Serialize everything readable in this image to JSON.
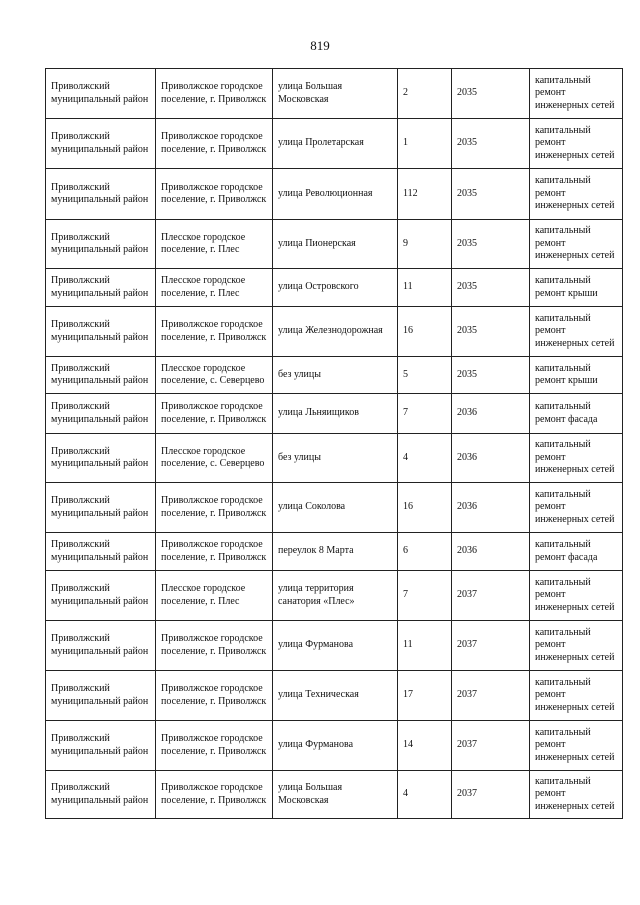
{
  "page_number": "819",
  "rows": [
    [
      "Приволжский муниципальный район",
      "Приволжское городское поселение, г. Приволжск",
      "улица Большая Московская",
      "2",
      "2035",
      "капитальный ремонт инженерных сетей"
    ],
    [
      "Приволжский муниципальный район",
      "Приволжское городское поселение, г. Приволжск",
      "улица Пролетарская",
      "1",
      "2035",
      "капитальный ремонт инженерных сетей"
    ],
    [
      "Приволжский муниципальный район",
      "Приволжское городское поселение, г. Приволжск",
      "улица Революционная",
      "112",
      "2035",
      "капитальный ремонт инженерных сетей"
    ],
    [
      "Приволжский муниципальный район",
      "Плесское городское поселение, г. Плес",
      "улица Пионерская",
      "9",
      "2035",
      "капитальный ремонт инженерных сетей"
    ],
    [
      "Приволжский муниципальный район",
      "Плесское городское поселение, г. Плес",
      "улица Островского",
      "11",
      "2035",
      "капитальный ремонт крыши"
    ],
    [
      "Приволжский муниципальный район",
      "Приволжское городское поселение, г. Приволжск",
      "улица Железнодорожная",
      "16",
      "2035",
      "капитальный ремонт инженерных сетей"
    ],
    [
      "Приволжский муниципальный район",
      "Плесское городское поселение, с. Северцево",
      "без улицы",
      "5",
      "2035",
      "капитальный ремонт крыши"
    ],
    [
      "Приволжский муниципальный район",
      "Приволжское городское поселение, г. Приволжск",
      "улица Льняищиков",
      "7",
      "2036",
      "капитальный ремонт фасада"
    ],
    [
      "Приволжский муниципальный район",
      "Плесское городское поселение, с. Северцево",
      "без улицы",
      "4",
      "2036",
      "капитальный ремонт инженерных сетей"
    ],
    [
      "Приволжский муниципальный район",
      "Приволжское городское поселение, г. Приволжск",
      "улица Соколова",
      "16",
      "2036",
      "капитальный ремонт инженерных сетей"
    ],
    [
      "Приволжский муниципальный район",
      "Приволжское городское поселение, г. Приволжск",
      "переулок 8 Марта",
      "6",
      "2036",
      "капитальный ремонт фасада"
    ],
    [
      "Приволжский муниципальный район",
      "Плесское городское поселение, г. Плес",
      "улица территория санатория «Плес»",
      "7",
      "2037",
      "капитальный ремонт инженерных сетей"
    ],
    [
      "Приволжский муниципальный район",
      "Приволжское городское поселение, г. Приволжск",
      "улица Фурманова",
      "11",
      "2037",
      "капитальный ремонт инженерных сетей"
    ],
    [
      "Приволжский муниципальный район",
      "Приволжское городское поселение, г. Приволжск",
      "улица Техническая",
      "17",
      "2037",
      "капитальный ремонт инженерных сетей"
    ],
    [
      "Приволжский муниципальный район",
      "Приволжское городское поселение, г. Приволжск",
      "улица Фурманова",
      "14",
      "2037",
      "капитальный ремонт инженерных сетей"
    ],
    [
      "Приволжский муниципальный район",
      "Приволжское городское поселение, г. Приволжск",
      "улица Большая Московская",
      "4",
      "2037",
      "капитальный ремонт инженерных сетей"
    ]
  ]
}
